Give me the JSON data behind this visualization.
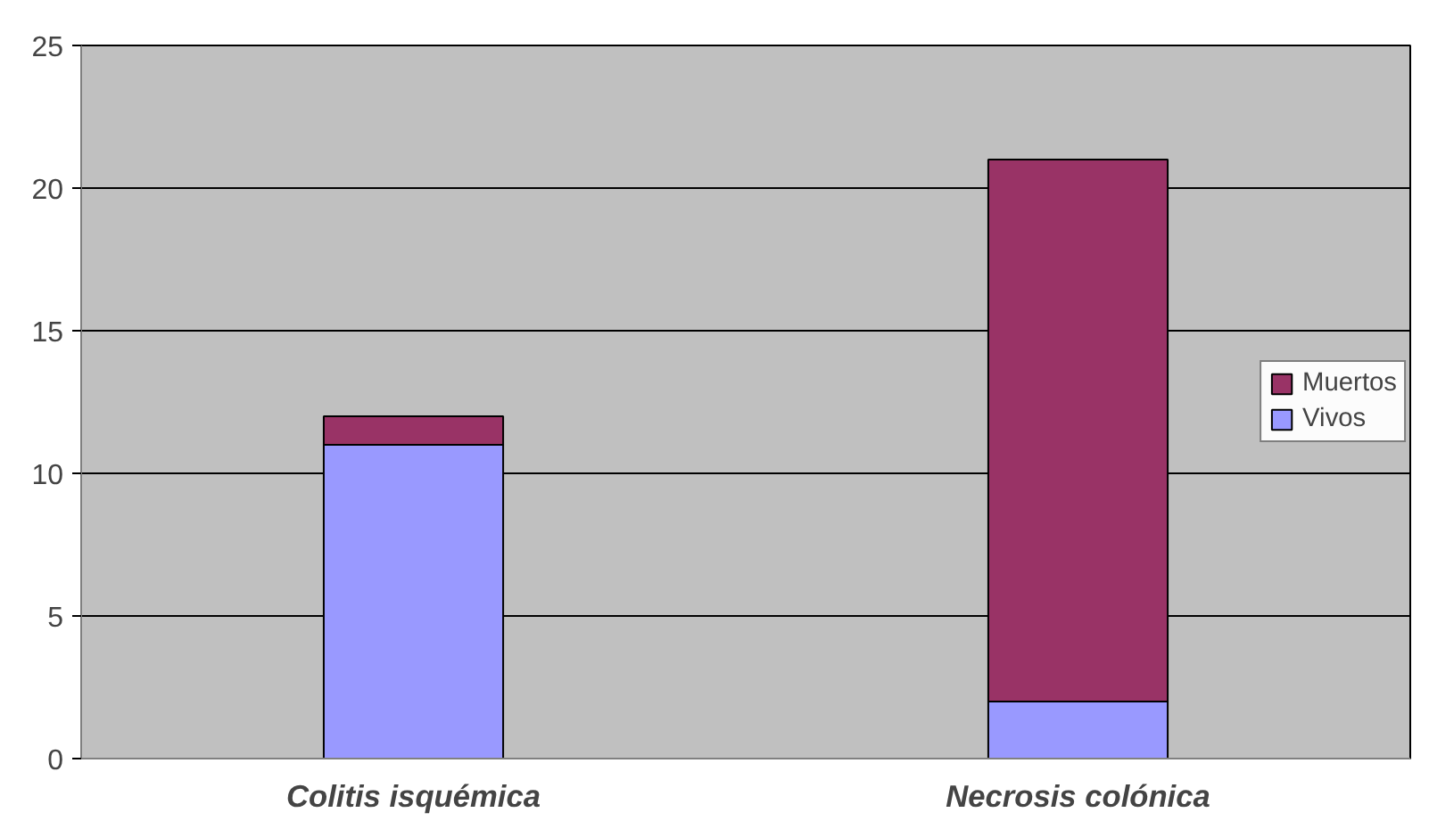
{
  "chart_data": {
    "type": "bar",
    "stacked": true,
    "categories": [
      "Colitis isquémica",
      "Necrosis colónica"
    ],
    "series": [
      {
        "name": "Vivos",
        "color": "#9999ff",
        "values": [
          11,
          2
        ]
      },
      {
        "name": "Muertos",
        "color": "#993366",
        "values": [
          1,
          19
        ]
      }
    ],
    "ylim": [
      0,
      25
    ],
    "yticks": [
      0,
      5,
      10,
      15,
      20,
      25
    ],
    "grid": "y",
    "legend": "right"
  }
}
